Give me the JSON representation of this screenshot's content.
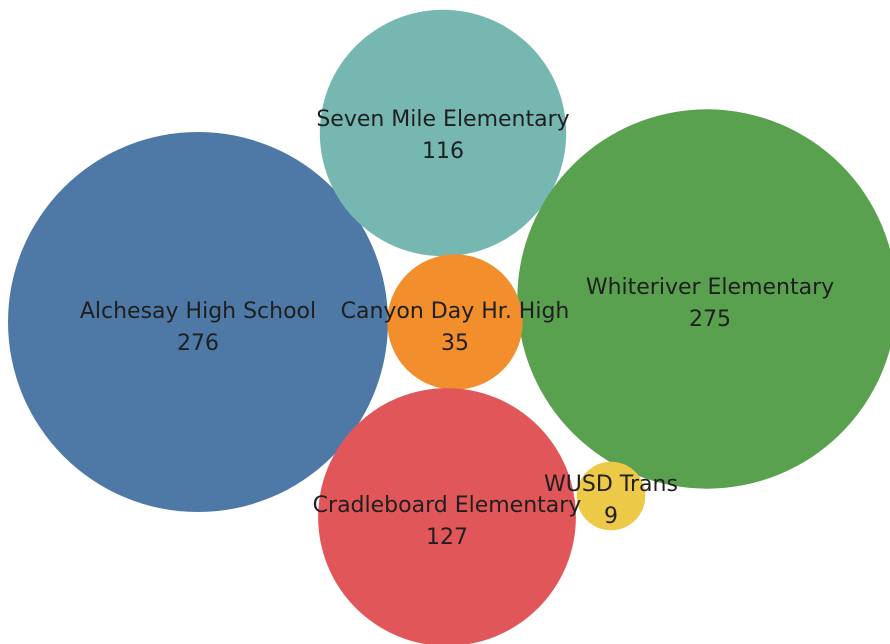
{
  "chart_data": {
    "type": "packed-bubble",
    "title": "",
    "items": [
      {
        "label": "Alchesay High School",
        "value": 276,
        "color": "#4e79a7"
      },
      {
        "label": "Seven Mile Elementary",
        "value": 116,
        "color": "#76b7b2"
      },
      {
        "label": "Whiteriver Elementary",
        "value": 275,
        "color": "#59a14f"
      },
      {
        "label": "Canyon Day Hr. High",
        "value": 35,
        "color": "#f28e2b"
      },
      {
        "label": "Cradleboard Elementary",
        "value": 127,
        "color": "#e15759"
      },
      {
        "label": "WUSD Trans",
        "value": 9,
        "color": "#edc948"
      }
    ]
  }
}
